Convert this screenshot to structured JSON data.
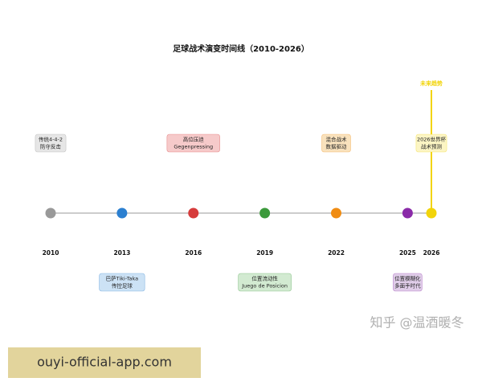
{
  "chart_data": {
    "type": "timeline",
    "title": "足球战术演变时间线（2010-2026）",
    "xlim": [
      2010,
      2026
    ],
    "line_color": "#bbbbbb",
    "events": [
      {
        "year": 2010,
        "label": [
          "传统4-4-2",
          "防守反击"
        ],
        "color": "#999999",
        "box_color": "#e6e6e6"
      },
      {
        "year": 2013,
        "label": [
          "巴萨Tiki-Taka",
          "传控足球"
        ],
        "color": "#2b7fd0",
        "box_color": "#cce2f5"
      },
      {
        "year": 2016,
        "label": [
          "高位压迫",
          "Gegenpressing"
        ],
        "color": "#d63b3b",
        "box_color": "#f6caca"
      },
      {
        "year": 2019,
        "label": [
          "位置流动性",
          "Juego de Posicion"
        ],
        "color": "#3c9a3c",
        "box_color": "#d2ead1"
      },
      {
        "year": 2022,
        "label": [
          "混合战术",
          "数据驱动"
        ],
        "color": "#f08c12",
        "box_color": "#f9e2bd"
      },
      {
        "year": 2025,
        "label": [
          "位置模糊化",
          "多面手时代"
        ],
        "color": "#8a2aa8",
        "box_color": "#e0cde9"
      },
      {
        "year": 2026,
        "label": [
          "2026世界杯",
          "战术预测"
        ],
        "color": "#f2d40a",
        "box_color": "#fcf5c4"
      }
    ],
    "annotation": "未来趋势"
  },
  "watermark": "知乎 @温酒暖冬",
  "banner": "ouyi-official-app.com"
}
